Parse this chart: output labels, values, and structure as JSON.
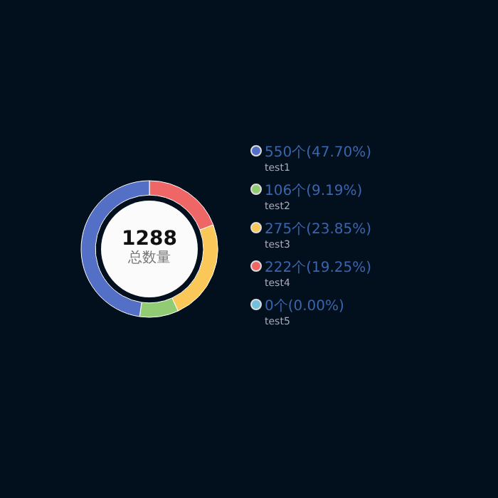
{
  "chart_data": {
    "type": "donut",
    "categories": [
      "test1",
      "test2",
      "test3",
      "test4",
      "test5"
    ],
    "values": [
      550,
      106,
      275,
      222,
      0
    ],
    "colors": [
      "#5470c6",
      "#91cc75",
      "#fac858",
      "#ee6666",
      "#73c0de"
    ],
    "value_labels": [
      "550个(47.70%)",
      "106个(9.19%)",
      "275个(23.85%)",
      "222个(19.25%)",
      "0个(0.00%)"
    ],
    "annotations": [
      "1288",
      "总数量"
    ],
    "legend": "right"
  }
}
